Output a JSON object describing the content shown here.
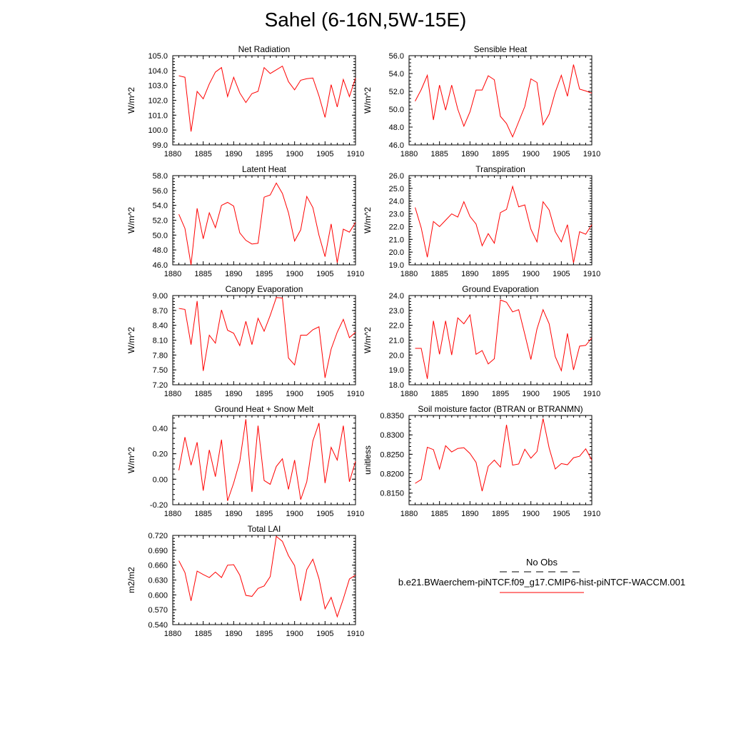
{
  "title": "Sahel (6-16N,5W-15E)",
  "x_ticks": [
    "1880",
    "1885",
    "1890",
    "1895",
    "1900",
    "1905",
    "1910"
  ],
  "colors": {
    "series": "#ff0000",
    "obs": "#000000",
    "axes": "#000000"
  },
  "chart_data": [
    {
      "type": "line",
      "title": "Net Radiation",
      "ylabel": "W/m^2",
      "xlim": [
        1880,
        1910
      ],
      "ylim": [
        99.0,
        105.0
      ],
      "yticks": [
        "99.0",
        "100.0",
        "101.0",
        "102.0",
        "103.0",
        "104.0",
        "105.0"
      ],
      "series": [
        {
          "x_start": 1881,
          "values": [
            103.65,
            103.55,
            99.9,
            102.6,
            102.1,
            103.1,
            103.9,
            104.2,
            102.25,
            103.55,
            102.5,
            101.85,
            102.45,
            102.6,
            104.2,
            103.8,
            104.05,
            104.3,
            103.25,
            102.7,
            103.35,
            103.45,
            103.5,
            102.3,
            100.85,
            103.05,
            101.55,
            103.4,
            102.25,
            103.5
          ]
        }
      ]
    },
    {
      "type": "line",
      "title": "Sensible Heat",
      "ylabel": "W/m^2",
      "xlim": [
        1880,
        1910
      ],
      "ylim": [
        46.0,
        56.0
      ],
      "yticks": [
        "46.0",
        "48.0",
        "50.0",
        "52.0",
        "54.0",
        "56.0"
      ],
      "series": [
        {
          "x_start": 1881,
          "values": [
            50.9,
            52.2,
            53.8,
            48.8,
            52.7,
            49.9,
            52.7,
            50.0,
            48.1,
            49.7,
            52.15,
            52.15,
            53.75,
            53.3,
            49.2,
            48.4,
            46.9,
            48.6,
            50.3,
            53.4,
            53.0,
            48.25,
            49.45,
            51.9,
            53.8,
            51.45,
            55.0,
            52.25,
            52.05,
            51.8
          ]
        }
      ]
    },
    {
      "type": "line",
      "title": "Latent Heat",
      "ylabel": "W/m^2",
      "xlim": [
        1880,
        1910
      ],
      "ylim": [
        46.0,
        58.0
      ],
      "yticks": [
        "46.0",
        "48.0",
        "50.0",
        "52.0",
        "54.0",
        "56.0",
        "58.0"
      ],
      "series": [
        {
          "x_start": 1881,
          "values": [
            52.8,
            50.9,
            46.0,
            53.6,
            49.5,
            53.0,
            51.0,
            54.0,
            54.4,
            53.9,
            50.3,
            49.3,
            48.8,
            48.9,
            55.1,
            55.4,
            57.0,
            55.6,
            53.0,
            49.2,
            50.7,
            55.2,
            53.7,
            50.0,
            47.1,
            51.5,
            46.3,
            50.8,
            50.4,
            51.7
          ]
        }
      ]
    },
    {
      "type": "line",
      "title": "Transpiration",
      "ylabel": "W/m^2",
      "xlim": [
        1880,
        1910
      ],
      "ylim": [
        19.0,
        26.0
      ],
      "yticks": [
        "19.0",
        "20.0",
        "21.0",
        "22.0",
        "23.0",
        "24.0",
        "25.0",
        "26.0"
      ],
      "series": [
        {
          "x_start": 1881,
          "values": [
            23.5,
            21.9,
            19.6,
            22.4,
            22.0,
            22.5,
            23.0,
            22.75,
            23.95,
            22.8,
            22.2,
            20.5,
            21.45,
            20.7,
            23.1,
            23.35,
            25.15,
            23.55,
            23.7,
            21.8,
            20.8,
            23.95,
            23.3,
            21.6,
            20.8,
            22.15,
            19.15,
            21.6,
            21.4,
            22.15
          ]
        }
      ]
    },
    {
      "type": "line",
      "title": "Canopy Evaporation",
      "ylabel": "W/m^2",
      "xlim": [
        1880,
        1910
      ],
      "ylim": [
        7.2,
        9.0
      ],
      "yticks": [
        "7.20",
        "7.50",
        "7.80",
        "8.10",
        "8.40",
        "8.70",
        "9.00"
      ],
      "series": [
        {
          "x_start": 1881,
          "values": [
            8.74,
            8.72,
            8.01,
            8.89,
            7.48,
            8.2,
            8.04,
            8.71,
            8.3,
            8.24,
            7.99,
            8.48,
            8.01,
            8.54,
            8.28,
            8.6,
            8.96,
            8.95,
            7.74,
            7.6,
            8.2,
            8.2,
            8.31,
            8.37,
            7.34,
            7.92,
            8.26,
            8.52,
            8.15,
            8.26
          ]
        }
      ]
    },
    {
      "type": "line",
      "title": "Ground Evaporation",
      "ylabel": "W/m^2",
      "xlim": [
        1880,
        1910
      ],
      "ylim": [
        18.0,
        24.0
      ],
      "yticks": [
        "18.0",
        "19.0",
        "20.0",
        "21.0",
        "22.0",
        "23.0",
        "24.0"
      ],
      "series": [
        {
          "x_start": 1881,
          "values": [
            20.45,
            20.45,
            18.4,
            22.3,
            20.05,
            22.3,
            20.0,
            22.5,
            22.1,
            22.7,
            20.05,
            20.3,
            19.4,
            19.75,
            23.7,
            23.55,
            22.9,
            23.05,
            21.4,
            19.7,
            21.75,
            23.05,
            22.1,
            19.9,
            18.95,
            21.45,
            19.0,
            20.6,
            20.65,
            21.15
          ]
        }
      ]
    },
    {
      "type": "line",
      "title": "Ground Heat + Snow Melt",
      "ylabel": "W/m^2",
      "xlim": [
        1880,
        1910
      ],
      "ylim": [
        -0.2,
        0.5
      ],
      "yticks": [
        "-0.20",
        "0.00",
        "0.20",
        "0.40"
      ],
      "series": [
        {
          "x_start": 1881,
          "values": [
            0.07,
            0.33,
            0.11,
            0.29,
            -0.09,
            0.23,
            0.02,
            0.31,
            -0.17,
            -0.03,
            0.14,
            0.47,
            -0.1,
            0.42,
            -0.01,
            -0.04,
            0.1,
            0.16,
            -0.08,
            0.15,
            -0.16,
            -0.02,
            0.3,
            0.44,
            -0.03,
            0.25,
            0.15,
            0.42,
            -0.02,
            0.14
          ]
        }
      ]
    },
    {
      "type": "line",
      "title": "Soil moisture factor (BTRAN or BTRANMN)",
      "ylabel": "unitless",
      "xlim": [
        1880,
        1910
      ],
      "ylim": [
        0.812,
        0.835
      ],
      "yticks": [
        "0.8150",
        "0.8200",
        "0.8250",
        "0.8300",
        "0.8350"
      ],
      "series": [
        {
          "x_start": 1881,
          "values": [
            0.8175,
            0.8185,
            0.8268,
            0.8262,
            0.8212,
            0.8272,
            0.8256,
            0.8265,
            0.8267,
            0.8252,
            0.8229,
            0.8155,
            0.8219,
            0.8235,
            0.8217,
            0.8326,
            0.8222,
            0.8225,
            0.8263,
            0.824,
            0.8257,
            0.8342,
            0.8266,
            0.8212,
            0.8226,
            0.8223,
            0.8241,
            0.8245,
            0.8264,
            0.8235
          ]
        }
      ]
    },
    {
      "type": "line",
      "title": "Total LAI",
      "ylabel": "m2/m2",
      "xlim": [
        1880,
        1910
      ],
      "ylim": [
        0.54,
        0.72
      ],
      "yticks": [
        "0.540",
        "0.570",
        "0.600",
        "0.630",
        "0.660",
        "0.690",
        "0.720"
      ],
      "series": [
        {
          "x_start": 1881,
          "values": [
            0.669,
            0.645,
            0.588,
            0.648,
            0.641,
            0.635,
            0.646,
            0.635,
            0.66,
            0.661,
            0.64,
            0.599,
            0.597,
            0.613,
            0.618,
            0.637,
            0.718,
            0.708,
            0.679,
            0.659,
            0.588,
            0.651,
            0.672,
            0.633,
            0.572,
            0.595,
            0.556,
            0.592,
            0.632,
            0.64
          ]
        }
      ]
    }
  ],
  "legend": {
    "obs_label": "No Obs",
    "model_label": "b.e21.BWaerchem-piNTCF.f09_g17.CMIP6-hist-piNTCF-WACCM.001"
  }
}
